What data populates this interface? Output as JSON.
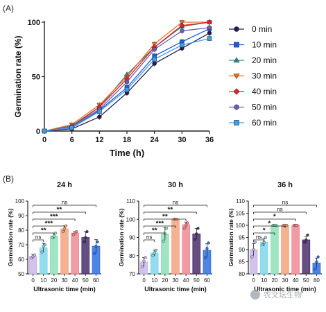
{
  "figure": {
    "panel_a_label": "(A)",
    "panel_b_label": "(B)",
    "watermark": "农文坛生物"
  },
  "chart_data": [
    {
      "type": "line",
      "panel": "(A)",
      "xlabel": "Time (h)",
      "ylabel": "Germination rate (%)",
      "x": [
        0,
        6,
        12,
        18,
        24,
        30,
        36
      ],
      "xlim": [
        0,
        36
      ],
      "ylim": [
        0,
        100
      ],
      "xticks": [
        "0",
        "6",
        "12",
        "18",
        "24",
        "30",
        "36"
      ],
      "yticks": [
        "0",
        "50",
        "100"
      ],
      "legend_position": "right",
      "series": [
        {
          "name": "0 min",
          "color": "#2b1a4f",
          "marker": "circle",
          "values": [
            0,
            2,
            13,
            35,
            62,
            76,
            90
          ]
        },
        {
          "name": "10 min",
          "color": "#1f5fd6",
          "marker": "square",
          "values": [
            0,
            3,
            19,
            40,
            69,
            82,
            94
          ]
        },
        {
          "name": "20 min",
          "color": "#2d8a8a",
          "marker": "triangle-up",
          "values": [
            0,
            5,
            22,
            52,
            77,
            96,
            100
          ]
        },
        {
          "name": "30 min",
          "color": "#f26b1d",
          "marker": "triangle-down",
          "values": [
            0,
            6,
            24,
            50,
            80,
            100,
            100
          ]
        },
        {
          "name": "40 min",
          "color": "#e0202a",
          "marker": "diamond",
          "values": [
            0,
            4,
            22,
            48,
            77,
            97,
            100
          ]
        },
        {
          "name": "50 min",
          "color": "#6b5fb5",
          "marker": "circle",
          "values": [
            0,
            4,
            20,
            45,
            75,
            92,
            95
          ]
        },
        {
          "name": "60 min",
          "color": "#3aa0e8",
          "marker": "square",
          "values": [
            0,
            3,
            18,
            38,
            66,
            79,
            85
          ]
        }
      ]
    },
    {
      "type": "bar",
      "title": "24 h",
      "xlabel": "Ultrasonic time (min)",
      "ylabel": "Germination rate (%)",
      "categories": [
        "0",
        "10",
        "20",
        "30",
        "40",
        "50",
        "60"
      ],
      "values": [
        62,
        68,
        76,
        81,
        78,
        75,
        69
      ],
      "errors": [
        1.5,
        3,
        2,
        2,
        1,
        4,
        4.5
      ],
      "colors": [
        "#c9b8e8",
        "#7fd6ea",
        "#8ee0b8",
        "#f5a37f",
        "#f08a95",
        "#4a2f6b",
        "#2f6fe0"
      ],
      "points": [
        [
          61,
          62,
          63
        ],
        [
          65,
          69,
          70
        ],
        [
          75,
          76,
          78
        ],
        [
          79,
          81,
          83
        ],
        [
          77,
          78,
          79
        ],
        [
          72,
          75,
          79
        ],
        [
          64,
          69,
          72
        ]
      ],
      "ylim": [
        50,
        100
      ],
      "yticks": [
        "50",
        "60",
        "70",
        "80",
        "90",
        "100"
      ],
      "significance": [
        {
          "from": "0",
          "to": "10",
          "label": "ns"
        },
        {
          "from": "0",
          "to": "20",
          "label": "**"
        },
        {
          "from": "0",
          "to": "30",
          "label": "***"
        },
        {
          "from": "0",
          "to": "40",
          "label": "***"
        },
        {
          "from": "0",
          "to": "50",
          "label": "**"
        },
        {
          "from": "0",
          "to": "60",
          "label": "ns"
        }
      ]
    },
    {
      "type": "bar",
      "title": "30 h",
      "xlabel": "Ultrasonic time (min)",
      "ylabel": "Germination rate (%)",
      "categories": [
        "0",
        "10",
        "20",
        "30",
        "40",
        "50",
        "60"
      ],
      "values": [
        76.5,
        81.5,
        92,
        100,
        97,
        92,
        83
      ],
      "errors": [
        2.5,
        1.5,
        3.5,
        0.5,
        1.5,
        3,
        3.5
      ],
      "colors": [
        "#c9b8e8",
        "#7fd6ea",
        "#8ee0b8",
        "#f5a37f",
        "#f08a95",
        "#4a2f6b",
        "#2f6fe0"
      ],
      "points": [
        [
          74,
          77,
          79
        ],
        [
          80,
          81.5,
          83
        ],
        [
          88,
          92,
          95
        ],
        [
          100,
          100,
          100
        ],
        [
          95,
          97,
          98
        ],
        [
          89,
          92,
          95
        ],
        [
          79,
          84,
          87
        ]
      ],
      "ylim": [
        70,
        110
      ],
      "yticks": [
        "70",
        "80",
        "90",
        "100",
        "110"
      ],
      "significance": [
        {
          "from": "0",
          "to": "10",
          "label": "ns"
        },
        {
          "from": "0",
          "to": "20",
          "label": "**"
        },
        {
          "from": "0",
          "to": "30",
          "label": "***"
        },
        {
          "from": "0",
          "to": "40",
          "label": "**"
        },
        {
          "from": "0",
          "to": "50",
          "label": "**"
        },
        {
          "from": "0",
          "to": "60",
          "label": "ns"
        }
      ]
    },
    {
      "type": "bar",
      "title": "36 h",
      "xlabel": "Ultrasonic time (min)",
      "ylabel": "Germination rate (%)",
      "categories": [
        "0",
        "10",
        "20",
        "30",
        "40",
        "50",
        "60"
      ],
      "values": [
        90,
        93,
        100,
        100,
        100,
        94,
        84.5
      ],
      "errors": [
        2.5,
        1.5,
        0.3,
        0.3,
        0.3,
        1.5,
        2
      ],
      "colors": [
        "#c9b8e8",
        "#7fd6ea",
        "#8ee0b8",
        "#f5a37f",
        "#f08a95",
        "#4a2f6b",
        "#2f6fe0"
      ],
      "points": [
        [
          87,
          90,
          93
        ],
        [
          92,
          93,
          95
        ],
        [
          100,
          100,
          100
        ],
        [
          100,
          100,
          100
        ],
        [
          100,
          100,
          100
        ],
        [
          93,
          94,
          96
        ],
        [
          82,
          85,
          87
        ]
      ],
      "ylim": [
        80,
        110
      ],
      "yticks": [
        "80",
        "85",
        "90",
        "95",
        "100",
        "105",
        "110"
      ],
      "significance": [
        {
          "from": "0",
          "to": "10",
          "label": "ns"
        },
        {
          "from": "0",
          "to": "20",
          "label": "*"
        },
        {
          "from": "0",
          "to": "30",
          "label": "*"
        },
        {
          "from": "0",
          "to": "40",
          "label": "*"
        },
        {
          "from": "0",
          "to": "50",
          "label": "ns"
        },
        {
          "from": "0",
          "to": "60",
          "label": "ns"
        }
      ]
    }
  ]
}
